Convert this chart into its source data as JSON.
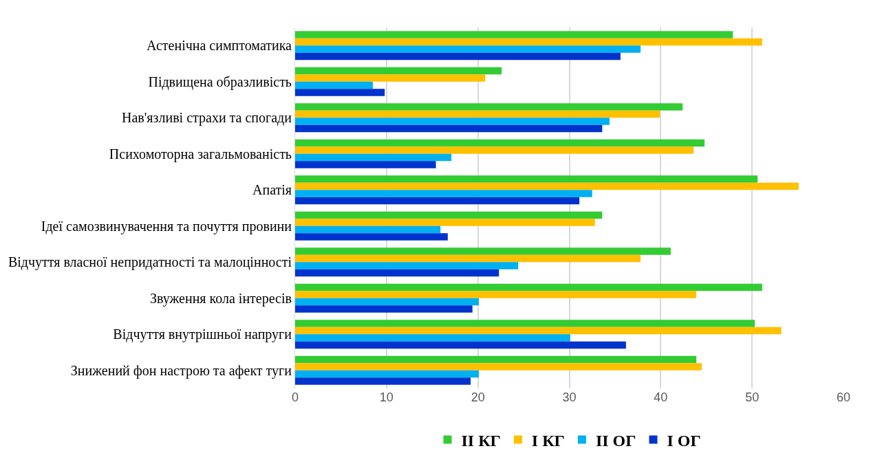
{
  "chart_data": {
    "type": "bar",
    "orientation": "horizontal",
    "categories": [
      "Астенічна симптоматика",
      "Підвищена образливість",
      "Нав'язливі страхи та спогади",
      "Психомоторна загальмованість",
      "Апатія",
      "Ідеї самозвинувачення та почуття провини",
      "Відчуття власної непридатності та малоцінності",
      "Звуження кола інтересів",
      "Відчуття внутрішньої напруги",
      "Знижений фон настрою та афект туги"
    ],
    "series": [
      {
        "name": "II КГ",
        "color": "#33cc33",
        "values": [
          47.9,
          22.6,
          42.4,
          44.8,
          50.6,
          33.6,
          41.1,
          51.1,
          50.3,
          43.9
        ]
      },
      {
        "name": "I КГ",
        "color": "#ffc000",
        "values": [
          51.1,
          20.8,
          39.9,
          43.6,
          55.1,
          32.8,
          37.8,
          43.9,
          53.2,
          44.5
        ]
      },
      {
        "name": "II ОГ",
        "color": "#00b0f0",
        "values": [
          37.8,
          8.5,
          34.4,
          17.1,
          32.5,
          15.9,
          24.4,
          20.1,
          30.1,
          20.1
        ]
      },
      {
        "name": "I ОГ",
        "color": "#0033cc",
        "values": [
          35.6,
          9.8,
          33.6,
          15.4,
          31.1,
          16.7,
          22.3,
          19.4,
          36.2,
          19.2
        ]
      }
    ],
    "xlim": [
      0,
      60
    ],
    "xticks": [
      0,
      10,
      20,
      30,
      40,
      50,
      60
    ],
    "grid": "x",
    "legend": "bottom"
  }
}
